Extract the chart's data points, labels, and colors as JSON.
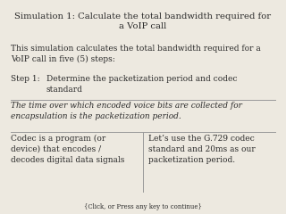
{
  "title_line1": "Simulation 1: Calculate the total bandwidth required for",
  "title_line2": "a VoIP call",
  "body_text": "This simulation calculates the total bandwidth required for a\nVoIP call in five (5) steps:",
  "step_label": "Step 1:",
  "step_detail": "Determine the packetization period and codec\nstandard",
  "italic_text": "The time over which encoded voice bits are collected for\nencapsulation is the packetization period.",
  "left_col": "Codec is a program (or\ndevice) that encodes /\ndecodes digital data signals",
  "right_col": "Let’s use the G.729 codec\nstandard and 20ms as our\npacketization period.",
  "footer": "{Click, or Press any key to continue}",
  "bg_color": "#ede9e0",
  "text_color": "#2a2a2a",
  "title_fontsize": 7.2,
  "body_fontsize": 6.5,
  "step_fontsize": 6.5,
  "italic_fontsize": 6.5,
  "col_fontsize": 6.5,
  "footer_fontsize": 5.0,
  "line_color": "#999999"
}
